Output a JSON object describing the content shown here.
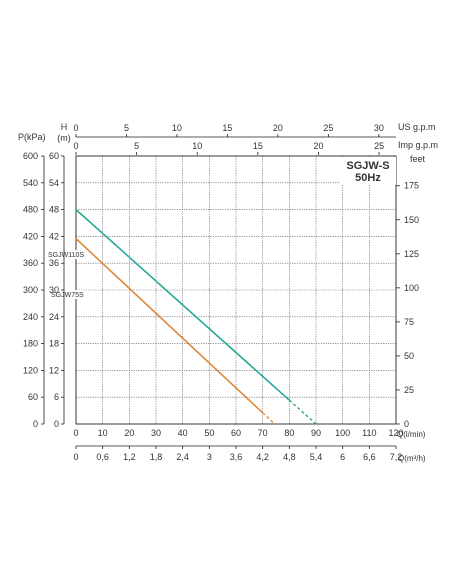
{
  "chart_data": {
    "type": "line",
    "title": "SGJW-S",
    "subtitle": "50Hz",
    "left_axes": [
      {
        "label": "P(kPa)",
        "ticks": [
          "600",
          "540",
          "480",
          "420",
          "360",
          "300",
          "240",
          "180",
          "120",
          "60",
          "0"
        ]
      },
      {
        "label": "H",
        "unit": "(m)",
        "ticks": [
          "60",
          "54",
          "48",
          "42",
          "36",
          "30",
          "24",
          "18",
          "12",
          "6",
          "0"
        ]
      }
    ],
    "right_axis": {
      "label": "feet",
      "ticks": [
        "175",
        "150",
        "125",
        "100",
        "75",
        "50",
        "25",
        "0"
      ]
    },
    "bottom_axes": [
      {
        "label": "Q(l/min)",
        "ticks": [
          "0",
          "10",
          "20",
          "30",
          "40",
          "50",
          "60",
          "70",
          "80",
          "90",
          "100",
          "110",
          "120"
        ]
      },
      {
        "label": "Q(m³/h)",
        "ticks": [
          "0",
          "0,6",
          "1,2",
          "1,8",
          "2,4",
          "3",
          "3,6",
          "4,2",
          "4,8",
          "5,4",
          "6",
          "6,6",
          "7,2"
        ]
      }
    ],
    "top_axes": [
      {
        "label": "US g.p.m",
        "ticks": [
          "0",
          "5",
          "10",
          "15",
          "20",
          "25",
          "30"
        ]
      },
      {
        "label": "Imp g.p.m",
        "ticks": [
          "0",
          "5",
          "10",
          "15",
          "20",
          "25"
        ]
      }
    ],
    "xlim": [
      0,
      120
    ],
    "ylim": [
      0,
      60
    ],
    "grid": true,
    "series": [
      {
        "name": "SGJW110S",
        "color": "#2aa899",
        "x": [
          0,
          90
        ],
        "y": [
          48,
          0
        ],
        "dashed_from_x": 80
      },
      {
        "name": "SGJW75S",
        "color": "#e0883a",
        "x": [
          0,
          74.5
        ],
        "y": [
          41.5,
          0
        ],
        "dashed_from_x": 70
      }
    ]
  }
}
